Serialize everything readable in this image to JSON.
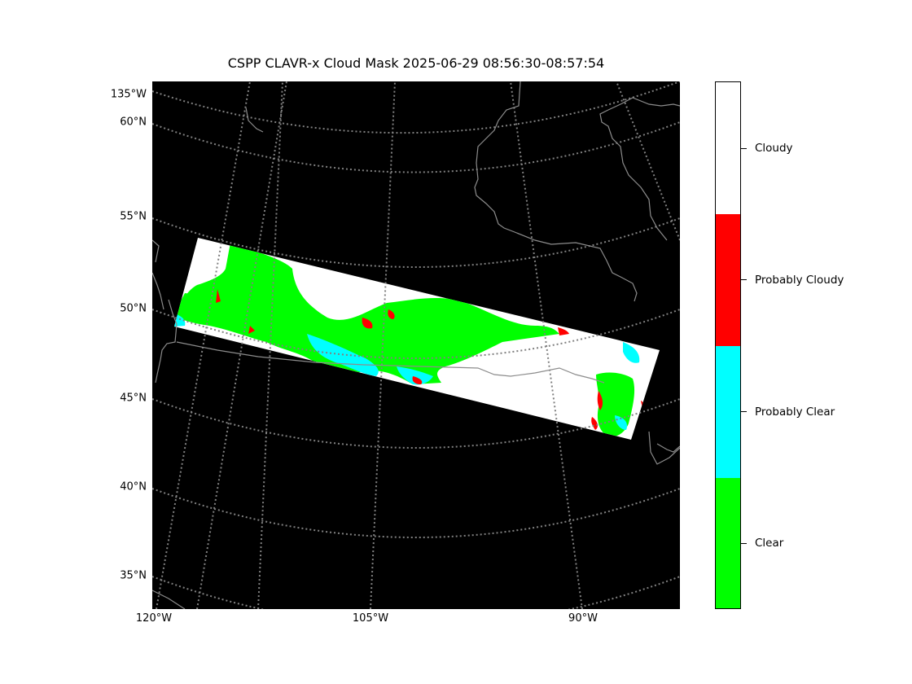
{
  "title": "CSPP CLAVR-x Cloud Mask 2025-06-29 08:56:30-08:57:54",
  "map": {
    "projection": "lambert conformal",
    "background_color": "#000000",
    "graticule_color": "#808080",
    "coastline_color": "#8c8c8c",
    "lat_labels": [
      "135°W",
      "60°N",
      "55°N",
      "50°N",
      "45°N",
      "40°N",
      "35°N"
    ],
    "lon_labels": [
      "120°W",
      "105°W",
      "90°W"
    ]
  },
  "legend": {
    "categories": [
      {
        "label": "Cloudy",
        "color": "#ffffff"
      },
      {
        "label": "Probably Cloudy",
        "color": "#ff0000"
      },
      {
        "label": "Probably Clear",
        "color": "#00ffff"
      },
      {
        "label": "Clear",
        "color": "#00ff00"
      }
    ]
  }
}
